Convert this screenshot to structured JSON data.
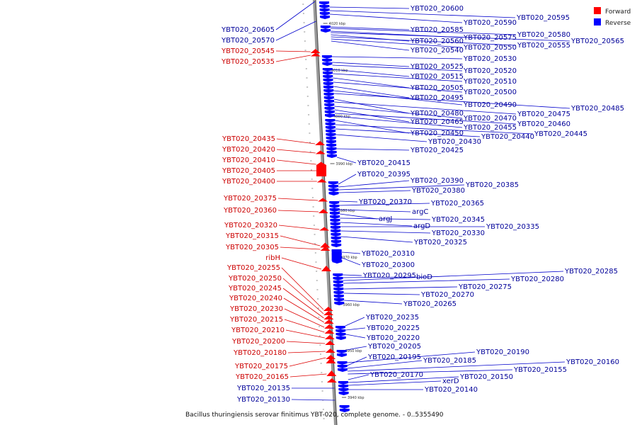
{
  "caption": "Bacillus thuringiensis serovar finitimus YBT-020, complete genome. - 0..5355490",
  "legend": {
    "forward": {
      "label": "Forward",
      "color": "#ff0000"
    },
    "reverse": {
      "label": "Reverse",
      "color": "#0000ff"
    }
  },
  "colors": {
    "forward_text": "#cc0000",
    "reverse_text": "#000099",
    "forward_line": "#dd0000",
    "reverse_line": "#0000cc"
  },
  "ticks": [
    "4020 kbp",
    "4010 kbp",
    "4000 kbp",
    "3990 kbp",
    "3980 kbp",
    "3970 kbp",
    "3960 kbp",
    "3950 kbp",
    "3940 kbp"
  ],
  "forward_labels": [
    "YBT020_20545",
    "YBT020_20535",
    "YBT020_20435",
    "YBT020_20420",
    "YBT020_20410",
    "YBT020_20405",
    "YBT020_20400",
    "YBT020_20375",
    "YBT020_20360",
    "YBT020_20320",
    "YBT020_20315",
    "YBT020_20305",
    "ribH",
    "YBT020_20255",
    "YBT020_20250",
    "YBT020_20245",
    "YBT020_20240",
    "YBT020_20230",
    "YBT020_20215",
    "YBT020_20210",
    "YBT020_20200",
    "YBT020_20180",
    "YBT020_20175",
    "YBT020_20165"
  ],
  "reverse_left_labels": [
    "YBT020_20605",
    "YBT020_20570",
    "YBT020_20135",
    "YBT020_20130"
  ],
  "reverse_labels": [
    "YBT020_20600",
    "YBT020_20595",
    "YBT020_20590",
    "YBT020_20585",
    "YBT020_20580",
    "YBT020_20575",
    "YBT020_20565",
    "YBT020_20560",
    "YBT020_20555",
    "YBT020_20550",
    "YBT020_20540",
    "YBT020_20530",
    "YBT020_20525",
    "YBT020_20520",
    "YBT020_20515",
    "YBT020_20510",
    "YBT020_20505",
    "YBT020_20500",
    "YBT020_20495",
    "YBT020_20490",
    "YBT020_20485",
    "YBT020_20480",
    "YBT020_20475",
    "YBT020_20470",
    "YBT020_20465",
    "YBT020_20460",
    "YBT020_20455",
    "YBT020_20450",
    "YBT020_20445",
    "YBT020_20440",
    "YBT020_20430",
    "YBT020_20425",
    "YBT020_20415",
    "YBT020_20395",
    "YBT020_20390",
    "YBT020_20385",
    "YBT020_20380",
    "YBT020_20370",
    "YBT020_20365",
    "argC",
    "argJ",
    "YBT020_20345",
    "argD",
    "YBT020_20335",
    "YBT020_20330",
    "YBT020_20325",
    "YBT020_20310",
    "YBT020_20300",
    "YBT020_20295",
    "bioD",
    "YBT020_20285",
    "YBT020_20280",
    "YBT020_20275",
    "YBT020_20270",
    "YBT020_20265",
    "YBT020_20235",
    "YBT020_20225",
    "YBT020_20220",
    "YBT020_20205",
    "YBT020_20190",
    "YBT020_20195",
    "YBT020_20185",
    "YBT020_20160",
    "YBT020_20155",
    "YBT020_20170",
    "YBT020_20150",
    "xerD",
    "YBT020_20140"
  ]
}
